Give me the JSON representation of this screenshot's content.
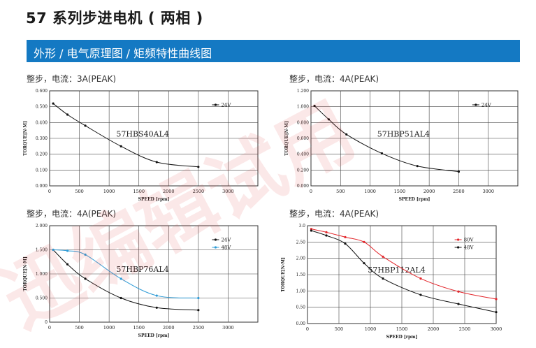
{
  "page": {
    "title": "57 系列步进电机 ( 两相 )",
    "section_title": "外形 / 电气原理图 / 矩频特性曲线图",
    "watermark": "迅编辑试用"
  },
  "chart_data": [
    {
      "caption": "整步，电流：3A(PEAK)",
      "type": "line",
      "model_label": "57HBS40AL4",
      "xlabel": "SPEED [rpm]",
      "ylabel": "TORQUE[N·M]",
      "xlim": [
        0,
        3500
      ],
      "ylim": [
        0,
        0.6
      ],
      "x_ticks": [
        "0",
        "500",
        "1000",
        "1500",
        "2000",
        "2500",
        "3000"
      ],
      "y_ticks": [
        "0.000",
        "0.100",
        "0.200",
        "0.300",
        "0.400",
        "0.500",
        "0.600"
      ],
      "series": [
        {
          "name": "24V",
          "color": "#111111",
          "x": [
            60,
            300,
            600,
            1200,
            1800,
            2500
          ],
          "y": [
            0.52,
            0.45,
            0.38,
            0.25,
            0.15,
            0.12
          ]
        }
      ]
    },
    {
      "caption": "整步，电流：4A(PEAK)",
      "type": "line",
      "model_label": "57HBP51AL4",
      "xlabel": "SPEED [rpm]",
      "ylabel": "TORQUE[N·M]",
      "xlim": [
        0,
        3500
      ],
      "ylim": [
        0,
        1.2
      ],
      "x_ticks": [
        "0",
        "500",
        "1000",
        "1500",
        "2000",
        "2500",
        "3000"
      ],
      "y_ticks": [
        "0.000",
        "0.200",
        "0.400",
        "0.600",
        "0.800",
        "1.000",
        "1.200"
      ],
      "series": [
        {
          "name": "24V",
          "color": "#111111",
          "x": [
            60,
            300,
            600,
            1200,
            1800,
            2500
          ],
          "y": [
            1.01,
            0.84,
            0.65,
            0.41,
            0.25,
            0.18
          ]
        }
      ]
    },
    {
      "caption": "整步，电流：4A(PEAK)",
      "type": "line",
      "model_label": "57HBP76AL4",
      "xlabel": "SPEED [rpm]",
      "ylabel": "TORQUE[N·M]",
      "xlim": [
        0,
        3500
      ],
      "ylim": [
        0,
        2.0
      ],
      "x_ticks": [
        "0",
        "500",
        "1000",
        "1500",
        "2000",
        "2500",
        "3000"
      ],
      "y_ticks": [
        "0",
        "0.500",
        "1.000",
        "1.500",
        "2.000"
      ],
      "series": [
        {
          "name": "24V",
          "color": "#111111",
          "x": [
            60,
            300,
            600,
            1200,
            1800,
            2500
          ],
          "y": [
            1.5,
            1.2,
            0.9,
            0.5,
            0.3,
            0.25
          ]
        },
        {
          "name": "48V",
          "color": "#2e9bd6",
          "x": [
            60,
            300,
            600,
            1200,
            1800,
            2500
          ],
          "y": [
            1.5,
            1.48,
            1.4,
            0.9,
            0.55,
            0.5
          ]
        }
      ]
    },
    {
      "caption": "整步，电流：4A(PEAK)",
      "type": "line",
      "model_label": "57HBP112AL4",
      "xlabel": "SPEED [rpm]",
      "ylabel": "TORQUE[N·M]",
      "xlim": [
        0,
        3000
      ],
      "ylim": [
        0,
        3.0
      ],
      "x_ticks": [
        "0",
        "500",
        "1000",
        "1500",
        "2000",
        "2500",
        "3000"
      ],
      "y_ticks": [
        "0.00",
        "0.50",
        "1.00",
        "1.50",
        "2.00",
        "2.50",
        "3.0"
      ],
      "series": [
        {
          "name": "80V",
          "color": "#e3262b",
          "x": [
            60,
            300,
            600,
            900,
            1200,
            1800,
            2400,
            3000
          ],
          "y": [
            2.9,
            2.8,
            2.65,
            2.5,
            2.05,
            1.38,
            0.98,
            0.75
          ]
        },
        {
          "name": "48V",
          "color": "#111111",
          "x": [
            60,
            300,
            600,
            900,
            1200,
            1800,
            2400,
            3000
          ],
          "y": [
            2.85,
            2.7,
            2.45,
            1.85,
            1.38,
            0.88,
            0.6,
            0.35
          ]
        }
      ]
    }
  ]
}
